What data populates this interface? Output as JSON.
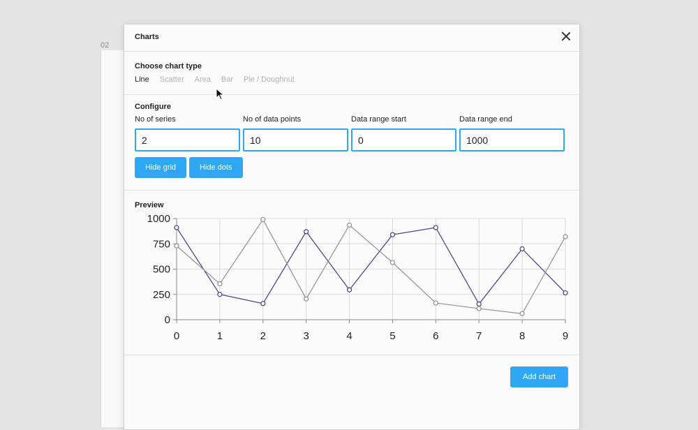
{
  "frame": {
    "label": "02"
  },
  "dialog": {
    "title": "Charts",
    "chart_type": {
      "heading": "Choose chart type",
      "tabs": [
        {
          "label": "Line",
          "active": true
        },
        {
          "label": "Scatter",
          "active": false
        },
        {
          "label": "Area",
          "active": false
        },
        {
          "label": "Bar",
          "active": false
        },
        {
          "label": "Pie / Doughnut",
          "active": false
        }
      ]
    },
    "configure": {
      "heading": "Configure",
      "fields": [
        {
          "label": "No of series",
          "value": "2"
        },
        {
          "label": "No of data points",
          "value": "10"
        },
        {
          "label": "Data range start",
          "value": "0"
        },
        {
          "label": "Data range end",
          "value": "1000"
        }
      ],
      "hide_grid_label": "Hide grid",
      "hide_dots_label": "Hide dots"
    },
    "preview": {
      "heading": "Preview"
    },
    "footer": {
      "add_label": "Add chart"
    }
  },
  "colors": {
    "accent": "#30a7f2",
    "series_1": "#3f3d86",
    "series_2": "#8f8f8f"
  },
  "chart_data": {
    "type": "line",
    "x": [
      0,
      1,
      2,
      3,
      4,
      5,
      6,
      7,
      8,
      9
    ],
    "series": [
      {
        "values": [
          910,
          250,
          160,
          870,
          295,
          840,
          910,
          155,
          700,
          265
        ]
      },
      {
        "values": [
          730,
          355,
          990,
          205,
          935,
          565,
          165,
          110,
          60,
          820
        ]
      }
    ],
    "ylim": [
      0,
      1000
    ],
    "yticks": [
      0,
      250,
      500,
      750,
      1000
    ],
    "xticks": [
      0,
      1,
      2,
      3,
      4,
      5,
      6,
      7,
      8,
      9
    ],
    "grid": true,
    "dots": true
  }
}
